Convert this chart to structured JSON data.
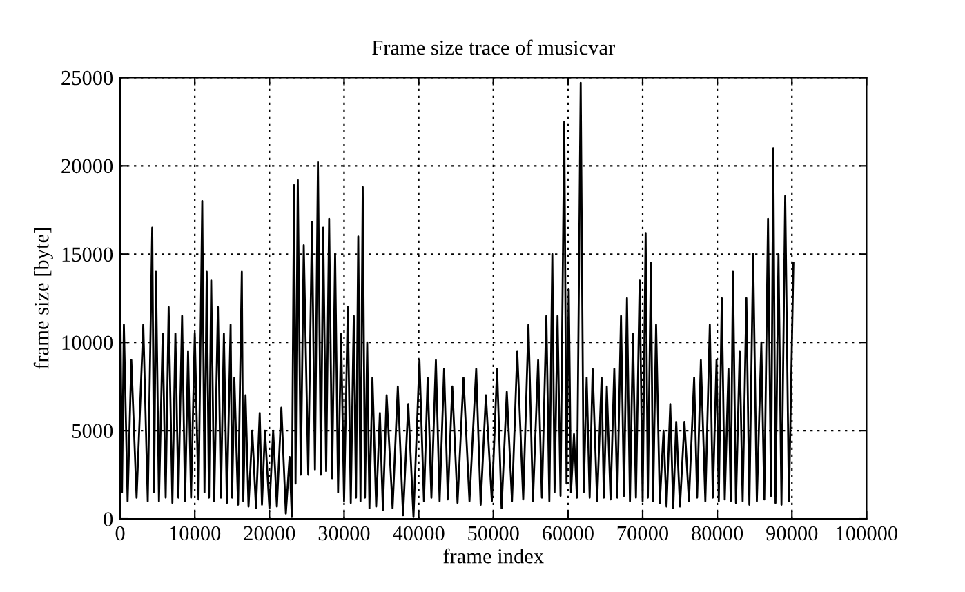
{
  "chart_data": {
    "type": "line",
    "title": "Frame size trace of musicvar",
    "xlabel": "frame index",
    "ylabel": "frame size [byte]",
    "xlim": [
      0,
      100000
    ],
    "xticks": [
      0,
      10000,
      20000,
      30000,
      40000,
      50000,
      60000,
      70000,
      80000,
      90000,
      100000
    ],
    "ylim": [
      0,
      25000
    ],
    "yticks": [
      0,
      5000,
      10000,
      15000,
      20000,
      25000
    ],
    "grid": true,
    "legend": false,
    "series": [
      {
        "color": "#000000",
        "x": [
          0,
          250,
          500,
          1000,
          1500,
          2200,
          3100,
          3700,
          4300,
          4550,
          4800,
          5200,
          5700,
          6100,
          6500,
          7000,
          7400,
          7800,
          8300,
          8700,
          9100,
          9500,
          10000,
          10500,
          11000,
          11300,
          11600,
          11900,
          12200,
          12600,
          13100,
          13500,
          13900,
          14300,
          14800,
          15000,
          15300,
          15800,
          16300,
          16500,
          16800,
          17200,
          17700,
          18200,
          18700,
          19000,
          19400,
          20000,
          20500,
          21000,
          21600,
          22200,
          22700,
          23000,
          23300,
          23500,
          23800,
          24200,
          24600,
          25200,
          25700,
          26100,
          26500,
          26900,
          27200,
          27600,
          28000,
          28400,
          28800,
          29200,
          29600,
          30000,
          30500,
          30900,
          31300,
          31600,
          31900,
          32200,
          32500,
          32800,
          33100,
          33400,
          33800,
          34300,
          34800,
          35200,
          35700,
          36500,
          37200,
          37900,
          38600,
          39300,
          40100,
          40700,
          41200,
          41700,
          42300,
          42800,
          43400,
          43900,
          44500,
          45200,
          46000,
          46800,
          47700,
          48300,
          49000,
          49800,
          50500,
          51100,
          51800,
          52500,
          53200,
          54000,
          54700,
          55300,
          56000,
          56500,
          57100,
          57500,
          57900,
          58200,
          58600,
          59000,
          59500,
          59800,
          60100,
          60400,
          60800,
          61200,
          61700,
          62100,
          62500,
          62900,
          63300,
          63900,
          64500,
          64800,
          65200,
          65700,
          66200,
          66600,
          67100,
          67500,
          67900,
          68300,
          68700,
          69100,
          69600,
          70000,
          70400,
          70700,
          71100,
          71400,
          71800,
          72300,
          72800,
          73200,
          73700,
          74100,
          74500,
          75000,
          75600,
          76200,
          76900,
          77300,
          77800,
          78400,
          79000,
          79400,
          79900,
          80200,
          80600,
          81000,
          81500,
          81800,
          82100,
          82500,
          83000,
          83400,
          83900,
          84300,
          84800,
          85300,
          85900,
          86300,
          86800,
          87200,
          87500,
          87800,
          88200,
          88600,
          89100,
          89600,
          90200
        ],
        "values": [
          13300,
          1500,
          11000,
          1000,
          9000,
          1200,
          11000,
          1000,
          16500,
          1500,
          14000,
          1000,
          10500,
          1200,
          12000,
          900,
          10500,
          1200,
          11500,
          1000,
          9500,
          1200,
          10500,
          1100,
          18000,
          1500,
          14000,
          1200,
          13500,
          1000,
          12000,
          1200,
          10500,
          900,
          11000,
          1200,
          8000,
          800,
          14000,
          1000,
          7000,
          700,
          5000,
          600,
          6000,
          800,
          5000,
          600,
          5000,
          700,
          6300,
          300,
          3500,
          100,
          18900,
          2000,
          19200,
          2500,
          15500,
          2500,
          16800,
          2800,
          20200,
          2500,
          16500,
          2700,
          17000,
          2300,
          15000,
          1500,
          10500,
          1000,
          12000,
          900,
          11500,
          1200,
          16000,
          1000,
          18800,
          1200,
          10000,
          600,
          8000,
          700,
          6000,
          500,
          7000,
          600,
          7500,
          200,
          6500,
          100,
          9000,
          1000,
          8000,
          1200,
          9000,
          1000,
          8500,
          1100,
          7500,
          900,
          8000,
          1000,
          8500,
          800,
          7000,
          1000,
          8500,
          600,
          7200,
          1000,
          9500,
          1100,
          11000,
          1000,
          9000,
          1200,
          11500,
          1000,
          15000,
          1500,
          11500,
          1300,
          22500,
          2000,
          13000,
          1500,
          4800,
          1200,
          24700,
          1500,
          8000,
          1200,
          8500,
          1000,
          8000,
          1200,
          7500,
          1100,
          8500,
          1200,
          11500,
          1300,
          12500,
          1000,
          10500,
          1200,
          13500,
          1000,
          16200,
          1200,
          14500,
          1000,
          11000,
          900,
          5000,
          700,
          6500,
          600,
          5500,
          700,
          5500,
          1000,
          8000,
          1200,
          9000,
          1000,
          11000,
          1200,
          9000,
          1000,
          12500,
          1100,
          8500,
          1000,
          14000,
          900,
          9500,
          1000,
          12500,
          800,
          15000,
          1000,
          10000,
          1100,
          17000,
          1300,
          21000,
          900,
          15000,
          800,
          18300,
          1000,
          14500
        ]
      }
    ]
  }
}
